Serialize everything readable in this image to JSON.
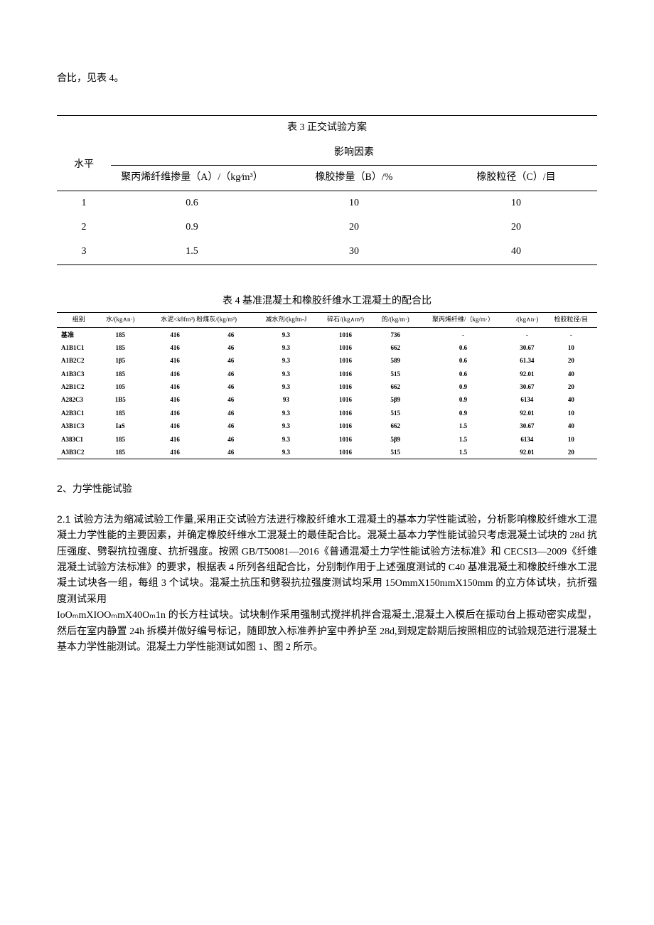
{
  "intro": "合比，见表 4。",
  "table3": {
    "title": "表 3 正交试验方案",
    "header_group": "影响因素",
    "level_label": "水平",
    "factors": [
      "聚丙烯纤维掺量（A）/（kg∕m³）",
      "橡胶掺量（B）/%",
      "橡胶粒径（C）/目"
    ],
    "rows": [
      {
        "level": "1",
        "a": "0.6",
        "b": "10",
        "c": "10"
      },
      {
        "level": "2",
        "a": "0.9",
        "b": "20",
        "c": "20"
      },
      {
        "level": "3",
        "a": "1.5",
        "b": "30",
        "c": "40"
      }
    ]
  },
  "table4": {
    "title": "表 4 基准混凝土和橡胶纤维水工混凝土的配合比",
    "columns": [
      "组别",
      "水/(kg∧n·)",
      "水泥<k8fm³) 粉煤灰/(kg/m³)",
      "",
      "减水剂/(kgftn-J",
      "碎石/(kg∧m³)",
      "的/(kg/m·)",
      "聚丙烯纤维/（kg/m·）",
      "/(kg∧n·)",
      "检胶粒径/目"
    ],
    "rows": [
      [
        "基准",
        "185",
        "416",
        "46",
        "9.3",
        "1016",
        "736",
        "-",
        "-",
        "-"
      ],
      [
        "A1B1C1",
        "185",
        "416",
        "46",
        "9.3",
        "1016",
        "662",
        "0.6",
        "30.67",
        "10"
      ],
      [
        "A1B2C2",
        "1β5",
        "416",
        "46",
        "9.3",
        "1016",
        "589",
        "0.6",
        "61.34",
        "20"
      ],
      [
        "A1B3C3",
        "185",
        "416",
        "46",
        "9.3",
        "1016",
        "515",
        "0.6",
        "92.01",
        "40"
      ],
      [
        "A2B1C2",
        "105",
        "416",
        "46",
        "9.3",
        "1016",
        "662",
        "0.9",
        "30.67",
        "20"
      ],
      [
        "A282C3",
        "1B5",
        "416",
        "46",
        "93",
        "1016",
        "5β9",
        "0.9",
        "6134",
        "40"
      ],
      [
        "A2B3C1",
        "185",
        "416",
        "46",
        "9.3",
        "1016",
        "515",
        "0.9",
        "92.01",
        "10"
      ],
      [
        "A3B1C3",
        "IaS",
        "416",
        "46",
        "9.3",
        "1016",
        "662",
        "1.5",
        "30.67",
        "40"
      ],
      [
        "A383C1",
        "185",
        "416",
        "46",
        "9.3",
        "1016",
        "5β9",
        "1.5",
        "6134",
        "10"
      ],
      [
        "A3B3C2",
        "185",
        "416",
        "46",
        "9.3",
        "1016",
        "515",
        "1.5",
        "92.01",
        "20"
      ]
    ]
  },
  "section_title": "2、力学性能试验",
  "body": {
    "run_in": "2.1 试验方",
    "p1": "法为缩减试验工作量,采用正交试验方法进行橡胶纤维水工混凝土的基本力学性能试验，分析影响橡胶纤维水工混凝土力学性能的主要因素，并确定橡胶纤维水工混凝土的最佳配合比。混凝土基本力学性能试验只考虑混凝土试块的 28d 抗压强度、劈裂抗拉强度、抗折强度。按照 GB/T50081—2016《普通混凝土力学性能试验方法标准》和 CECSI3—2009《纤维混凝土试验方法标准》的要求，根据表 4 所列各组配合比，分别制作用于上述强度测试的 C40 基准混凝土和橡胶纤维水工混凝土试块各一组，每组 3 个试块。混凝土抗压和劈裂抗拉强度测试均采用 15OmmX150nımX150mm 的立方体试块，抗折强度测试采用",
    "p2": "IoOₘmXIOOₘmX40Oₘ1n 的长方柱试块。试块制作采用强制式搅拌机拌合混凝土,混凝土入模后在振动台上振动密实成型，然后在室内静置 24h 拆模并做好编号标记，随即放入标准养护室中养护至 28d,到规定龄期后按照相应的试验规范进行混凝土基本力学性能测试。混凝土力学性能测试如图 1、图 2 所示。"
  }
}
